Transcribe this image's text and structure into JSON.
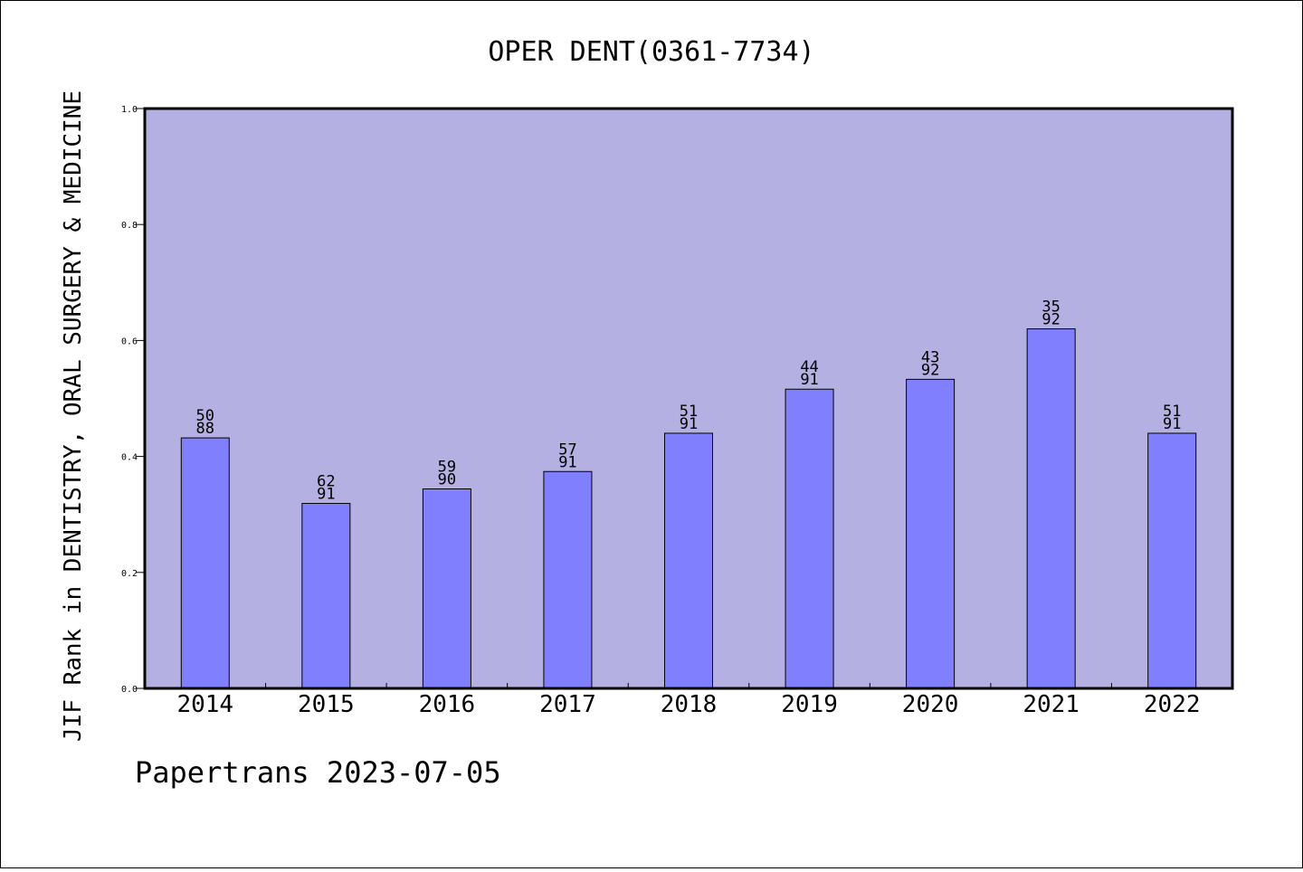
{
  "chart_data": {
    "type": "bar",
    "title": "OPER DENT(0361-7734)",
    "xlabel": "",
    "ylabel": "JIF Rank in DENTISTRY, ORAL SURGERY & MEDICINE",
    "categories": [
      "2014",
      "2015",
      "2016",
      "2017",
      "2018",
      "2019",
      "2020",
      "2021",
      "2022"
    ],
    "values": [
      0.432,
      0.319,
      0.344,
      0.374,
      0.44,
      0.516,
      0.533,
      0.62,
      0.44
    ],
    "rank_labels": [
      {
        "rank": "50",
        "total": "88"
      },
      {
        "rank": "62",
        "total": "91"
      },
      {
        "rank": "59",
        "total": "90"
      },
      {
        "rank": "57",
        "total": "91"
      },
      {
        "rank": "51",
        "total": "91"
      },
      {
        "rank": "44",
        "total": "91"
      },
      {
        "rank": "43",
        "total": "92"
      },
      {
        "rank": "35",
        "total": "92"
      },
      {
        "rank": "51",
        "total": "91"
      }
    ],
    "ylim": [
      0,
      1.0
    ],
    "yticks": [
      "0.0",
      "0.2",
      "0.4",
      "0.6",
      "0.8",
      "1.0"
    ],
    "grid": false,
    "colors": {
      "plot_background": "#b5b0e2",
      "bar": "#8080ff",
      "bar_edge": "#000000"
    }
  },
  "footer": {
    "text": "Papertrans 2023-07-05"
  }
}
